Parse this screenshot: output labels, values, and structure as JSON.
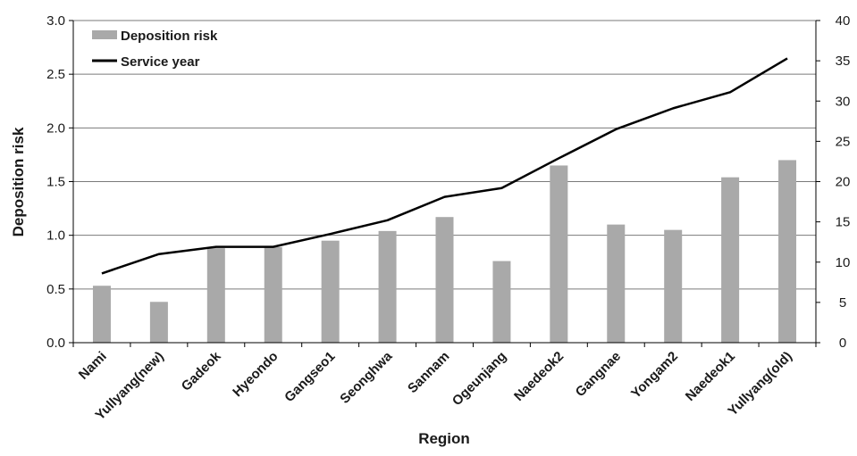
{
  "chart_data": {
    "type": "bar",
    "categories": [
      "Nami",
      "Yullyang(new)",
      "Gadeok",
      "Hyeondo",
      "Gangseo1",
      "Seonghwa",
      "Sannam",
      "Ogeunjang",
      "Naedeok2",
      "Gangnae",
      "Yongam2",
      "Naedeok1",
      "Yullyang(old)"
    ],
    "series": [
      {
        "name": "Deposition risk",
        "type": "bar",
        "axis": "left",
        "color": "#a9a9a9",
        "values": [
          0.53,
          0.38,
          0.88,
          0.89,
          0.95,
          1.04,
          1.17,
          0.76,
          1.65,
          1.1,
          1.05,
          1.54,
          1.7
        ]
      },
      {
        "name": "Service year",
        "type": "line",
        "axis": "right",
        "color": "#000000",
        "values": [
          8.6,
          11,
          11.9,
          11.9,
          13.5,
          15.2,
          18.1,
          19.2,
          22.9,
          26.5,
          29.1,
          31.1,
          35.3
        ]
      }
    ],
    "xlabel": "Region",
    "ylabel": "Deposition risk",
    "y2label": "",
    "ylim": [
      0,
      3.0
    ],
    "y2lim": [
      0,
      40
    ],
    "yticks": [
      "0.0",
      "0.5",
      "1.0",
      "1.5",
      "2.0",
      "2.5",
      "3.0"
    ],
    "y2ticks": [
      "0",
      "5",
      "10",
      "15",
      "20",
      "25",
      "30",
      "35",
      "40"
    ],
    "grid": true,
    "legend": "top-left"
  }
}
